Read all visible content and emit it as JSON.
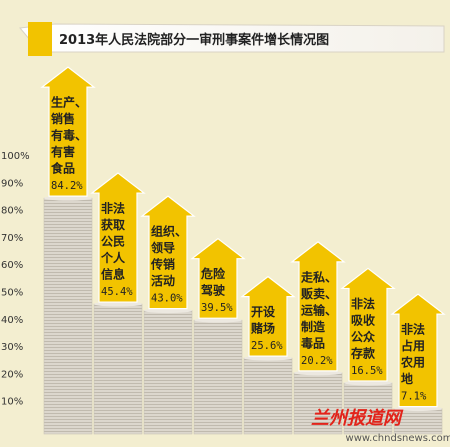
{
  "title": "2013年人民法院部分一审刑事案件增长情况图",
  "watermark": {
    "name": "兰州报道网",
    "url": "www.chndsnews.com"
  },
  "colors": {
    "background": "#f3eed0",
    "arrow": "#f2c300",
    "stack": "#d9d4cb",
    "title_banner": "#ffffff",
    "watermark": "#e2231a"
  },
  "chart_data": {
    "type": "bar",
    "title": "2013年人民法院部分一审刑事案件增长情况图",
    "y_ticks": [
      "10%",
      "20%",
      "30%",
      "40%",
      "50%",
      "60%",
      "70%",
      "80%",
      "90%",
      "100%"
    ],
    "ylim": [
      0,
      100
    ],
    "grid": false,
    "categories": [
      {
        "lines": [
          "生产、",
          "销售",
          "有毒、",
          "有害",
          "食品"
        ],
        "value": 84.2,
        "label": "84.2%"
      },
      {
        "lines": [
          "非法",
          "获取",
          "公民",
          "个人",
          "信息"
        ],
        "value": 45.4,
        "label": "45.4%"
      },
      {
        "lines": [
          "组织、",
          "领导",
          "传销",
          "活动"
        ],
        "value": 43.0,
        "label": "43.0%"
      },
      {
        "lines": [
          "危险",
          "驾驶"
        ],
        "value": 39.5,
        "label": "39.5%"
      },
      {
        "lines": [
          "开设",
          "赌场"
        ],
        "value": 25.6,
        "label": "25.6%"
      },
      {
        "lines": [
          "走私、",
          "贩卖、",
          "运输、",
          "制造",
          "毒品"
        ],
        "value": 20.2,
        "label": "20.2%"
      },
      {
        "lines": [
          "非法",
          "吸收",
          "公众",
          "存款"
        ],
        "value": 16.5,
        "label": "16.5%"
      },
      {
        "lines": [
          "非法",
          "占用",
          "农用",
          "地"
        ],
        "value": 7.1,
        "label": "7.1%"
      }
    ]
  }
}
